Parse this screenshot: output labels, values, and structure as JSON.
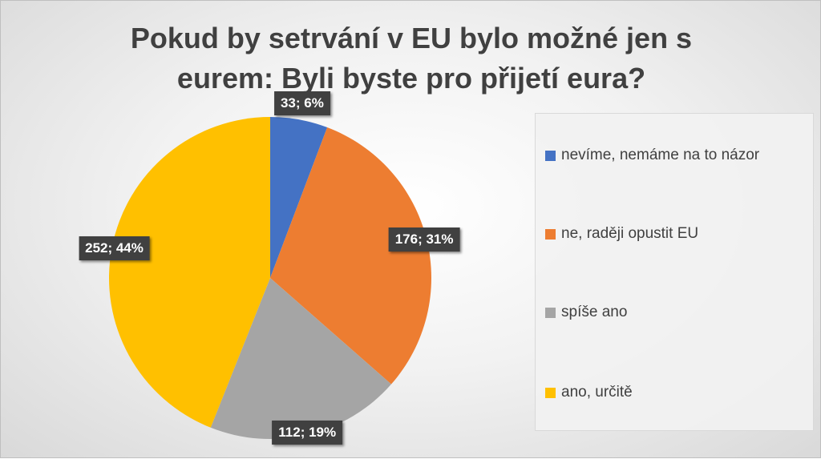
{
  "chart_data": {
    "type": "pie",
    "title_lines": [
      "Pokud by setrvání v EU bylo možné jen s",
      "eurem: Byli byste pro přijetí eura?"
    ],
    "slices": [
      {
        "label": "nevíme, nemáme na to názor",
        "value": 33,
        "percent": "6%",
        "data_label": "33; 6%",
        "color": "#4472C4"
      },
      {
        "label": "ne, raději opustit EU",
        "value": 176,
        "percent": "31%",
        "data_label": "176; 31%",
        "color": "#ED7D31"
      },
      {
        "label": "spíše ano",
        "value": 112,
        "percent": "19%",
        "data_label": "112; 19%",
        "color": "#A5A5A5"
      },
      {
        "label": "ano, určitě",
        "value": 252,
        "percent": "44%",
        "data_label": "252; 44%",
        "color": "#FFC000"
      }
    ],
    "legend_position": "right",
    "start_angle_deg": 0,
    "direction": "clockwise"
  }
}
